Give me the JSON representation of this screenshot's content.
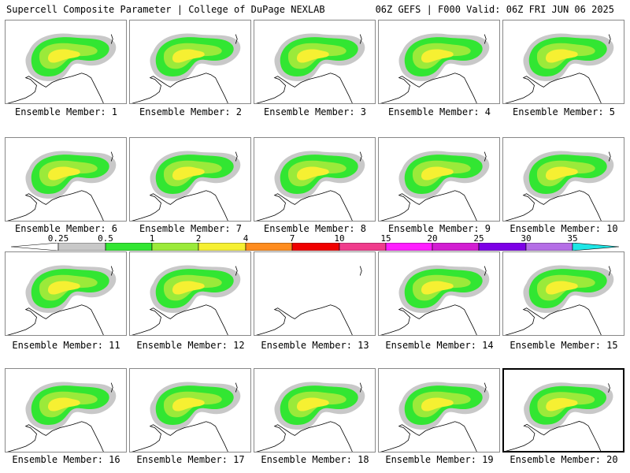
{
  "header": {
    "left": "Supercell Composite Parameter | College of DuPage NEXLAB",
    "right": "06Z GEFS | F000 Valid: 06Z FRI JUN 06 2025"
  },
  "colorbar": {
    "ticks": [
      "0.25",
      "0.5",
      "1",
      "2",
      "4",
      "7",
      "10",
      "15",
      "20",
      "25",
      "30",
      "35"
    ],
    "colors": [
      "#ffffff",
      "#c8c8c8",
      "#32e632",
      "#9bea3a",
      "#f6f032",
      "#ff8c1e",
      "#f00000",
      "#f03c8c",
      "#ff1eff",
      "#d21ed2",
      "#7d00e6",
      "#b46ee6",
      "#1ee6e6"
    ]
  },
  "panels": [
    {
      "label": "Ensemble Member: 1"
    },
    {
      "label": "Ensemble Member: 2"
    },
    {
      "label": "Ensemble Member: 3"
    },
    {
      "label": "Ensemble Member: 4"
    },
    {
      "label": "Ensemble Member: 5"
    },
    {
      "label": "Ensemble Member: 6"
    },
    {
      "label": "Ensemble Member: 7"
    },
    {
      "label": "Ensemble Member: 8"
    },
    {
      "label": "Ensemble Member: 9"
    },
    {
      "label": "Ensemble Member: 10"
    },
    {
      "label": "Ensemble Member: 11"
    },
    {
      "label": "Ensemble Member: 12"
    },
    {
      "label": "Ensemble Member: 13"
    },
    {
      "label": "Ensemble Member: 14"
    },
    {
      "label": "Ensemble Member: 15"
    },
    {
      "label": "Ensemble Member: 16"
    },
    {
      "label": "Ensemble Member: 17"
    },
    {
      "label": "Ensemble Member: 18"
    },
    {
      "label": "Ensemble Member: 19"
    },
    {
      "label": "Ensemble Member: 20"
    }
  ]
}
